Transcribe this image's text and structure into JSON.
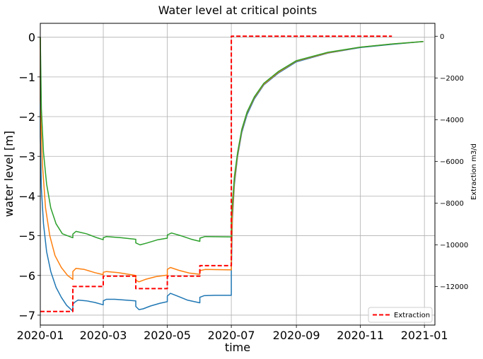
{
  "chart_data": {
    "type": "line",
    "title": "Water level at critical points",
    "xlabel": "time",
    "ylabel": "water level [m]",
    "y2label": "Extraction m3/d",
    "xlim": [
      "2020-01-01",
      "2021-01-11"
    ],
    "ylim": [
      -7.25,
      0.35
    ],
    "y2lim": [
      -13850,
      620
    ],
    "grid": true,
    "legend_position": "lower-right",
    "x_ticks": [
      "2020-01",
      "2020-03",
      "2020-05",
      "2020-07",
      "2020-09",
      "2020-11",
      "2021-01"
    ],
    "y_ticks": [
      "0",
      "−1",
      "−2",
      "−3",
      "−4",
      "−5",
      "−6",
      "−7"
    ],
    "y2_ticks": [
      "0",
      "−2000",
      "−4000",
      "−6000",
      "−8000",
      "−10000",
      "−12000"
    ],
    "series": [
      {
        "color": "#1f77b4",
        "axis": "left",
        "points": [
          [
            "2020-01-01",
            0
          ],
          [
            "2020-01-01",
            -2.5
          ],
          [
            "2020-01-02",
            -3.8
          ],
          [
            "2020-01-04",
            -4.7
          ],
          [
            "2020-01-07",
            -5.4
          ],
          [
            "2020-01-11",
            -5.9
          ],
          [
            "2020-01-16",
            -6.3
          ],
          [
            "2020-01-21",
            -6.55
          ],
          [
            "2020-01-26",
            -6.75
          ],
          [
            "2020-02-01",
            -6.9
          ],
          [
            "2020-02-01",
            -6.72
          ],
          [
            "2020-02-03",
            -6.67
          ],
          [
            "2020-02-06",
            -6.62
          ],
          [
            "2020-02-14",
            -6.64
          ],
          [
            "2020-02-22",
            -6.68
          ],
          [
            "2020-03-01",
            -6.74
          ],
          [
            "2020-03-01",
            -6.64
          ],
          [
            "2020-03-04",
            -6.6
          ],
          [
            "2020-03-12",
            -6.6
          ],
          [
            "2020-03-22",
            -6.62
          ],
          [
            "2020-04-01",
            -6.64
          ],
          [
            "2020-04-01",
            -6.78
          ],
          [
            "2020-04-04",
            -6.86
          ],
          [
            "2020-04-08",
            -6.84
          ],
          [
            "2020-04-15",
            -6.77
          ],
          [
            "2020-04-24",
            -6.7
          ],
          [
            "2020-05-01",
            -6.66
          ],
          [
            "2020-05-01",
            -6.52
          ],
          [
            "2020-05-04",
            -6.45
          ],
          [
            "2020-05-09",
            -6.5
          ],
          [
            "2020-05-20",
            -6.62
          ],
          [
            "2020-06-01",
            -6.69
          ],
          [
            "2020-06-01",
            -6.55
          ],
          [
            "2020-06-05",
            -6.51
          ],
          [
            "2020-06-15",
            -6.5
          ],
          [
            "2020-07-01",
            -6.5
          ],
          [
            "2020-07-01",
            -5.9
          ],
          [
            "2020-07-02",
            -4.6
          ],
          [
            "2020-07-04",
            -3.7
          ],
          [
            "2020-07-07",
            -3.0
          ],
          [
            "2020-07-11",
            -2.4
          ],
          [
            "2020-07-16",
            -1.95
          ],
          [
            "2020-07-23",
            -1.55
          ],
          [
            "2020-08-01",
            -1.2
          ],
          [
            "2020-08-15",
            -0.9
          ],
          [
            "2020-09-01",
            -0.62
          ],
          [
            "2020-10-01",
            -0.4
          ],
          [
            "2020-11-01",
            -0.26
          ],
          [
            "2020-12-01",
            -0.18
          ],
          [
            "2020-12-31",
            -0.11
          ]
        ]
      },
      {
        "color": "#ff7f0e",
        "axis": "left",
        "points": [
          [
            "2020-01-01",
            0
          ],
          [
            "2020-01-01",
            -1.6
          ],
          [
            "2020-01-03",
            -3.2
          ],
          [
            "2020-01-06",
            -4.3
          ],
          [
            "2020-01-10",
            -5.0
          ],
          [
            "2020-01-15",
            -5.5
          ],
          [
            "2020-01-21",
            -5.8
          ],
          [
            "2020-01-27",
            -6.0
          ],
          [
            "2020-02-01",
            -6.1
          ],
          [
            "2020-02-01",
            -5.9
          ],
          [
            "2020-02-04",
            -5.82
          ],
          [
            "2020-02-12",
            -5.85
          ],
          [
            "2020-02-22",
            -5.93
          ],
          [
            "2020-03-01",
            -5.98
          ],
          [
            "2020-03-01",
            -5.92
          ],
          [
            "2020-03-04",
            -5.9
          ],
          [
            "2020-03-15",
            -5.93
          ],
          [
            "2020-04-01",
            -6.0
          ],
          [
            "2020-04-01",
            -6.12
          ],
          [
            "2020-04-04",
            -6.16
          ],
          [
            "2020-04-10",
            -6.1
          ],
          [
            "2020-04-20",
            -6.03
          ],
          [
            "2020-05-01",
            -5.99
          ],
          [
            "2020-05-01",
            -5.85
          ],
          [
            "2020-05-04",
            -5.8
          ],
          [
            "2020-05-12",
            -5.87
          ],
          [
            "2020-05-22",
            -5.94
          ],
          [
            "2020-06-01",
            -5.97
          ],
          [
            "2020-06-01",
            -5.88
          ],
          [
            "2020-06-06",
            -5.85
          ],
          [
            "2020-07-01",
            -5.86
          ],
          [
            "2020-07-01",
            -5.5
          ],
          [
            "2020-07-02",
            -4.45
          ],
          [
            "2020-07-04",
            -3.6
          ],
          [
            "2020-07-07",
            -2.95
          ],
          [
            "2020-07-11",
            -2.35
          ],
          [
            "2020-07-16",
            -1.9
          ],
          [
            "2020-07-23",
            -1.52
          ],
          [
            "2020-08-01",
            -1.18
          ],
          [
            "2020-08-15",
            -0.88
          ],
          [
            "2020-09-01",
            -0.6
          ],
          [
            "2020-10-01",
            -0.39
          ],
          [
            "2020-11-01",
            -0.25
          ],
          [
            "2020-12-01",
            -0.17
          ],
          [
            "2020-12-31",
            -0.11
          ]
        ]
      },
      {
        "color": "#2ca02c",
        "axis": "left",
        "points": [
          [
            "2020-01-01",
            0
          ],
          [
            "2020-01-02",
            -1.8
          ],
          [
            "2020-01-04",
            -2.9
          ],
          [
            "2020-01-07",
            -3.7
          ],
          [
            "2020-01-11",
            -4.3
          ],
          [
            "2020-01-16",
            -4.7
          ],
          [
            "2020-01-22",
            -4.95
          ],
          [
            "2020-02-01",
            -5.05
          ],
          [
            "2020-02-01",
            -4.96
          ],
          [
            "2020-02-04",
            -4.89
          ],
          [
            "2020-02-14",
            -4.95
          ],
          [
            "2020-02-24",
            -5.05
          ],
          [
            "2020-03-01",
            -5.1
          ],
          [
            "2020-03-01",
            -5.05
          ],
          [
            "2020-03-04",
            -5.02
          ],
          [
            "2020-03-18",
            -5.05
          ],
          [
            "2020-04-01",
            -5.09
          ],
          [
            "2020-04-01",
            -5.18
          ],
          [
            "2020-04-05",
            -5.23
          ],
          [
            "2020-04-12",
            -5.18
          ],
          [
            "2020-04-22",
            -5.1
          ],
          [
            "2020-05-01",
            -5.06
          ],
          [
            "2020-05-01",
            -4.98
          ],
          [
            "2020-05-05",
            -4.93
          ],
          [
            "2020-05-14",
            -5.0
          ],
          [
            "2020-05-24",
            -5.09
          ],
          [
            "2020-06-01",
            -5.14
          ],
          [
            "2020-06-01",
            -5.06
          ],
          [
            "2020-06-06",
            -5.02
          ],
          [
            "2020-07-01",
            -5.03
          ],
          [
            "2020-07-01",
            -4.6
          ],
          [
            "2020-07-02",
            -4.2
          ],
          [
            "2020-07-04",
            -3.5
          ],
          [
            "2020-07-07",
            -2.9
          ],
          [
            "2020-07-11",
            -2.32
          ],
          [
            "2020-07-16",
            -1.88
          ],
          [
            "2020-07-23",
            -1.5
          ],
          [
            "2020-08-01",
            -1.16
          ],
          [
            "2020-08-15",
            -0.86
          ],
          [
            "2020-09-01",
            -0.59
          ],
          [
            "2020-10-01",
            -0.38
          ],
          [
            "2020-11-01",
            -0.25
          ],
          [
            "2020-12-01",
            -0.17
          ],
          [
            "2020-12-31",
            -0.11
          ]
        ]
      },
      {
        "name": "Extraction",
        "color": "#ff0000",
        "dashed": true,
        "axis": "right",
        "points": [
          [
            "2020-01-01",
            -13200
          ],
          [
            "2020-02-01",
            -13200
          ],
          [
            "2020-02-01",
            -12000
          ],
          [
            "2020-03-01",
            -12000
          ],
          [
            "2020-03-01",
            -11500
          ],
          [
            "2020-04-01",
            -11500
          ],
          [
            "2020-04-01",
            -12100
          ],
          [
            "2020-05-01",
            -12100
          ],
          [
            "2020-05-01",
            -11500
          ],
          [
            "2020-06-01",
            -11500
          ],
          [
            "2020-06-01",
            -11000
          ],
          [
            "2020-07-01",
            -11000
          ],
          [
            "2020-07-01",
            0
          ],
          [
            "2020-12-01",
            0
          ]
        ]
      }
    ]
  }
}
